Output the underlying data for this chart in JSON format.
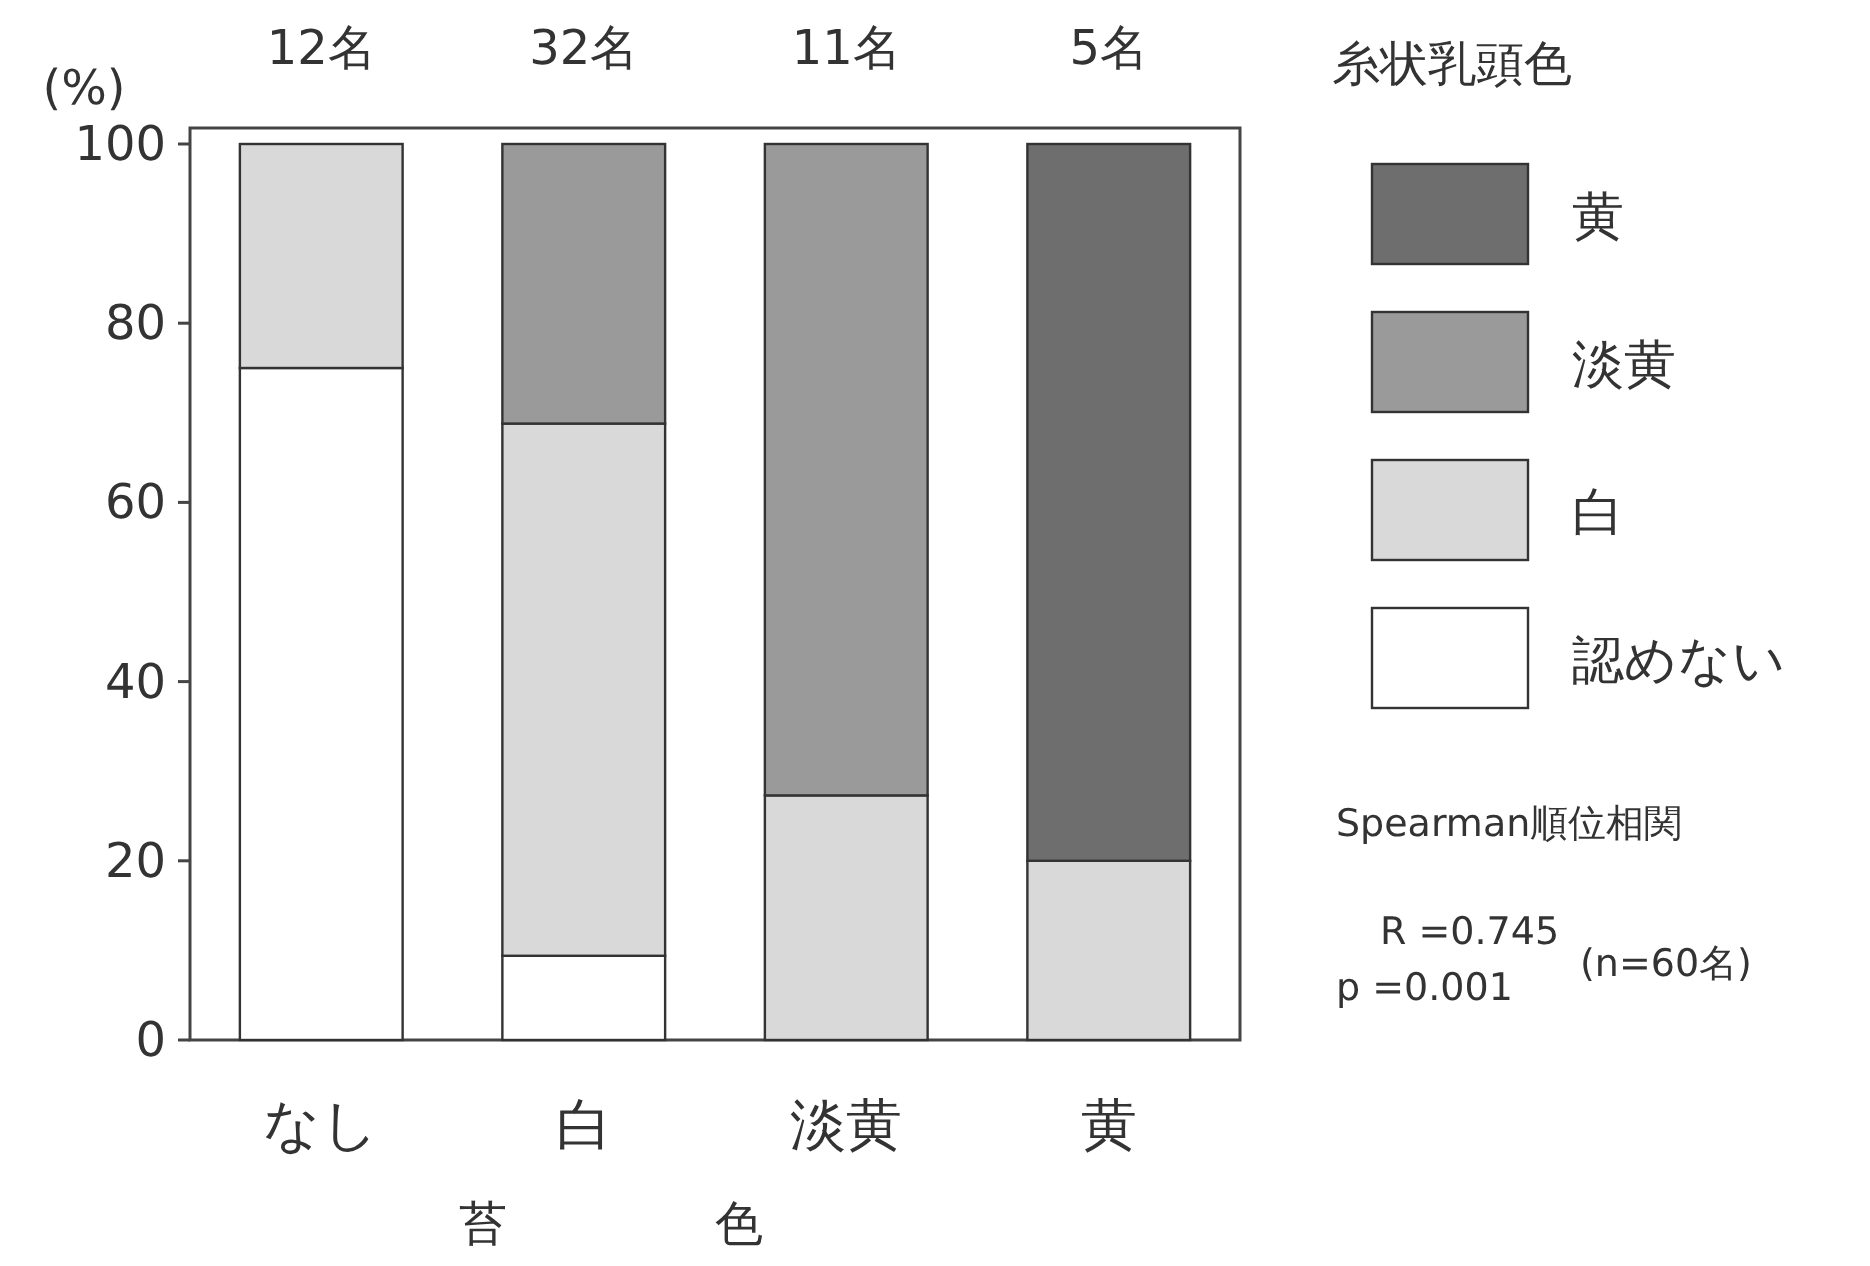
{
  "chart_data": {
    "type": "bar",
    "stacked": true,
    "ylabel": "(%)",
    "xlabel": "苔色",
    "legend_title": "糸状乳頭色",
    "legend": "right",
    "categories": [
      "なし",
      "白",
      "淡黄",
      "黄"
    ],
    "series": [
      {
        "name": "認めない",
        "color": "#ffffff",
        "values": [
          75,
          9.4,
          0,
          0
        ]
      },
      {
        "name": "白",
        "color": "#d9d9d9",
        "values": [
          25,
          59.4,
          27.3,
          20
        ]
      },
      {
        "name": "淡黄",
        "color": "#9a9a9a",
        "values": [
          0,
          31.2,
          72.7,
          0
        ]
      },
      {
        "name": "黄",
        "color": "#6e6e6e",
        "values": [
          0,
          0,
          0,
          80
        ]
      }
    ],
    "ylim": [
      0,
      100
    ],
    "yticks": [
      0,
      20,
      40,
      60,
      80,
      100
    ],
    "annotations": [
      {
        "text": "12名",
        "x": "なし",
        "y": 100
      },
      {
        "text": "32名",
        "x": "白",
        "y": 100
      },
      {
        "text": "11名",
        "x": "淡黄",
        "y": 100
      },
      {
        "text": "5名",
        "x": "黄",
        "y": 100
      },
      "Spearman順位相関",
      "R =0.745",
      "p =0.001",
      "(n=60名)"
    ]
  }
}
